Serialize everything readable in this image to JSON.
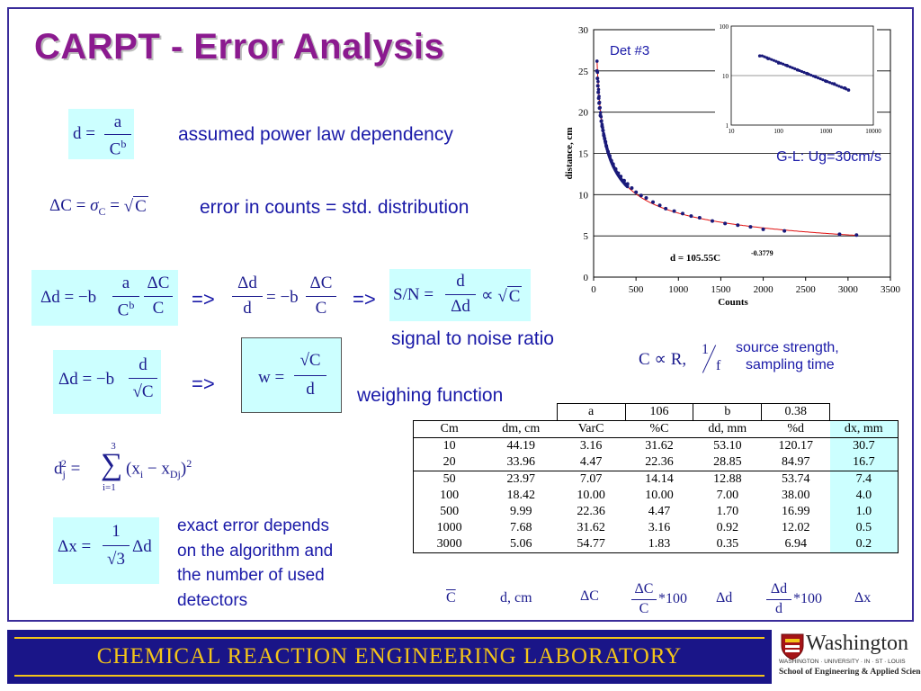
{
  "title": "CARPT  - Error Analysis",
  "labels": {
    "power_law": "assumed power law dependency",
    "error_counts": "error in counts = std. distribution",
    "snr": "signal to noise ratio",
    "weighing": "weighing function",
    "source_strength": "source strength,",
    "sampling_time": "sampling time",
    "exact_error_1": "exact error depends",
    "exact_error_2": "on the algorithm and",
    "exact_error_3": "the number of used",
    "exact_error_4": "detectors",
    "arrow": "=>"
  },
  "chart_data": [
    {
      "type": "scatter",
      "title": "",
      "xlabel": "Counts",
      "ylabel": "distance, cm",
      "xlim": [
        0,
        3500
      ],
      "ylim": [
        0,
        30
      ],
      "xticks": [
        0,
        500,
        1000,
        1500,
        2000,
        2500,
        3000,
        3500
      ],
      "yticks": [
        0,
        5,
        10,
        15,
        20,
        25,
        30
      ],
      "annotation_top": "Det #3",
      "annotation_right": "G-L: Ug=30cm/s",
      "fit_label": "d = 105.55C",
      "fit_exponent": "-0.3779",
      "fit": {
        "a": 105.55,
        "b": -0.3779
      },
      "series": [
        {
          "x": [
            40,
            45,
            50,
            55,
            60,
            65,
            70,
            80,
            90,
            100,
            110,
            120,
            130,
            140,
            150,
            170,
            190,
            210,
            230,
            260,
            290,
            320,
            360,
            400,
            450,
            500,
            560,
            620,
            700,
            780,
            850,
            950,
            1050,
            1150,
            1250,
            1400,
            1550,
            1700,
            1850,
            2000,
            2250,
            2900,
            3100
          ],
          "y": [
            25,
            24.1,
            23.2,
            22.4,
            21.7,
            21.1,
            20.5,
            19.6,
            18.9,
            18.3,
            17.8,
            17.2,
            16.8,
            16.4,
            15.9,
            15.2,
            14.7,
            14.1,
            13.7,
            13.1,
            12.6,
            12.2,
            11.7,
            11.3,
            10.8,
            10.3,
            9.9,
            9.6,
            9.1,
            8.7,
            8.3,
            8.0,
            7.7,
            7.4,
            7.2,
            6.8,
            6.5,
            6.3,
            6.1,
            5.8,
            5.6,
            5.2,
            5.1
          ]
        }
      ]
    },
    {
      "type": "scatter",
      "scale": "log-log",
      "xlim": [
        10,
        10000
      ],
      "ylim": [
        1,
        100
      ],
      "xticks": [
        "10",
        "100",
        "1000",
        "10000"
      ],
      "yticks": [
        "1",
        "10",
        "100"
      ],
      "series": [
        {
          "x": [
            40,
            60,
            100,
            150,
            250,
            400,
            600,
            1000,
            1500,
            2500,
            3000
          ],
          "y": [
            25,
            22,
            18,
            16,
            13,
            11,
            9.5,
            7.7,
            6.8,
            5.6,
            5.1
          ]
        }
      ]
    }
  ],
  "table": {
    "top_row": [
      "a",
      "106",
      "b",
      "0.38"
    ],
    "headers": [
      "Cm",
      "dm, cm",
      "VarC",
      "%C",
      "dd, mm",
      "%d",
      "dx, mm"
    ],
    "group1": [
      [
        "10",
        "44.19",
        "3.16",
        "31.62",
        "53.10",
        "120.17",
        "30.7"
      ],
      [
        "20",
        "33.96",
        "4.47",
        "22.36",
        "28.85",
        "84.97",
        "16.7"
      ]
    ],
    "group2": [
      [
        "50",
        "23.97",
        "7.07",
        "14.14",
        "12.88",
        "53.74",
        "7.4"
      ],
      [
        "100",
        "18.42",
        "10.00",
        "10.00",
        "7.00",
        "38.00",
        "4.0"
      ],
      [
        "500",
        "9.99",
        "22.36",
        "4.47",
        "1.70",
        "16.99",
        "1.0"
      ],
      [
        "1000",
        "7.68",
        "31.62",
        "3.16",
        "0.92",
        "12.02",
        "0.5"
      ],
      [
        "3000",
        "5.06",
        "54.77",
        "1.83",
        "0.35",
        "6.94",
        "0.2"
      ]
    ]
  },
  "bottom_labels": {
    "c": "C",
    "d": "d, cm",
    "dc": "ΔC",
    "pc_num": "ΔC",
    "pc_den": "C",
    "pc_times": "*100",
    "dd": "Δd",
    "pd_num": "Δd",
    "pd_den": "d",
    "pd_times": "*100",
    "dx": "Δx"
  },
  "footer": {
    "lab": "CHEMICAL  REACTION  ENGINEERING  LABORATORY",
    "uni": "Washington",
    "uni_sub": "WASHINGTON · UNIVERSITY · IN · ST · LOUIS",
    "school": "School of Engineering & Applied Science"
  },
  "colors": {
    "title": "#8b1a8f",
    "text": "#1a1aa8",
    "eq_bg": "#ccffff",
    "footer_bg": "#1a1588",
    "footer_text": "#f3c419"
  }
}
